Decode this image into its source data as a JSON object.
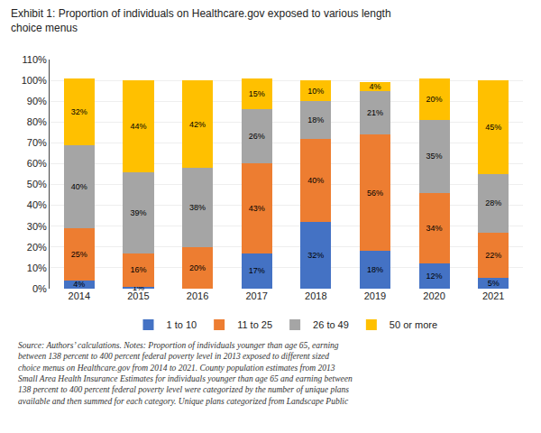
{
  "chart_data": {
    "type": "bar",
    "stacked": true,
    "title": "Exhibit 1: Proportion of individuals on Healthcare.gov exposed to various length\nchoice menus",
    "annotations": [
      "Source: Authors’ calculations. Notes: Proportion of individuals younger than age 65, earning\nbetween 138 percent to 400 percent federal poverty level in 2013 exposed to different sized\nchoice menus on Healthcare.gov from 2014 to 2021. County population estimates from 2013\nSmall Area Health Insurance Estimates for individuals younger than age 65 and earning between\n138 percent to 400 percent federal poverty level were categorized by the number of unique plans\navailable and then summed for each category. Unique plans categorized from Landscape Public"
    ],
    "categories": [
      "2014",
      "2015",
      "2016",
      "2017",
      "2018",
      "2019",
      "2020",
      "2021"
    ],
    "series": [
      {
        "name": "1 to 10",
        "color": "#4472C4",
        "values": [
          4,
          1,
          0,
          17,
          32,
          18,
          12,
          5
        ],
        "value_labels": [
          "4%",
          "1%",
          null,
          "17%",
          "32%",
          "18%",
          "12%",
          "5%"
        ]
      },
      {
        "name": "11 to 25",
        "color": "#ED7D31",
        "values": [
          25,
          16,
          20,
          43,
          40,
          56,
          34,
          22
        ],
        "value_labels": [
          "25%",
          "16%",
          "20%",
          "43%",
          "40%",
          "56%",
          "34%",
          "22%"
        ]
      },
      {
        "name": "26 to 49",
        "color": "#A5A5A5",
        "values": [
          40,
          39,
          38,
          26,
          18,
          21,
          35,
          28
        ],
        "value_labels": [
          "40%",
          "39%",
          "38%",
          "26%",
          "18%",
          "21%",
          "35%",
          "28%"
        ]
      },
      {
        "name": "50 or more",
        "color": "#FFC000",
        "values": [
          32,
          44,
          42,
          15,
          10,
          4,
          20,
          45
        ],
        "value_labels": [
          "32%",
          "44%",
          "42%",
          "15%",
          "10%",
          "4%",
          "20%",
          "45%"
        ]
      }
    ],
    "ylim": [
      0,
      110
    ],
    "yticks": [
      {
        "value": 0,
        "label": "0%"
      },
      {
        "value": 10,
        "label": "10%"
      },
      {
        "value": 20,
        "label": "20%"
      },
      {
        "value": 30,
        "label": "30%"
      },
      {
        "value": 40,
        "label": "40%"
      },
      {
        "value": 50,
        "label": "50%"
      },
      {
        "value": 60,
        "label": "60%"
      },
      {
        "value": 70,
        "label": "70%"
      },
      {
        "value": 80,
        "label": "80%"
      },
      {
        "value": 90,
        "label": "90%"
      },
      {
        "value": 100,
        "label": "100%"
      },
      {
        "value": 110,
        "label": "110%"
      }
    ],
    "grid": true,
    "data_labels": true,
    "legend": "bottom"
  }
}
